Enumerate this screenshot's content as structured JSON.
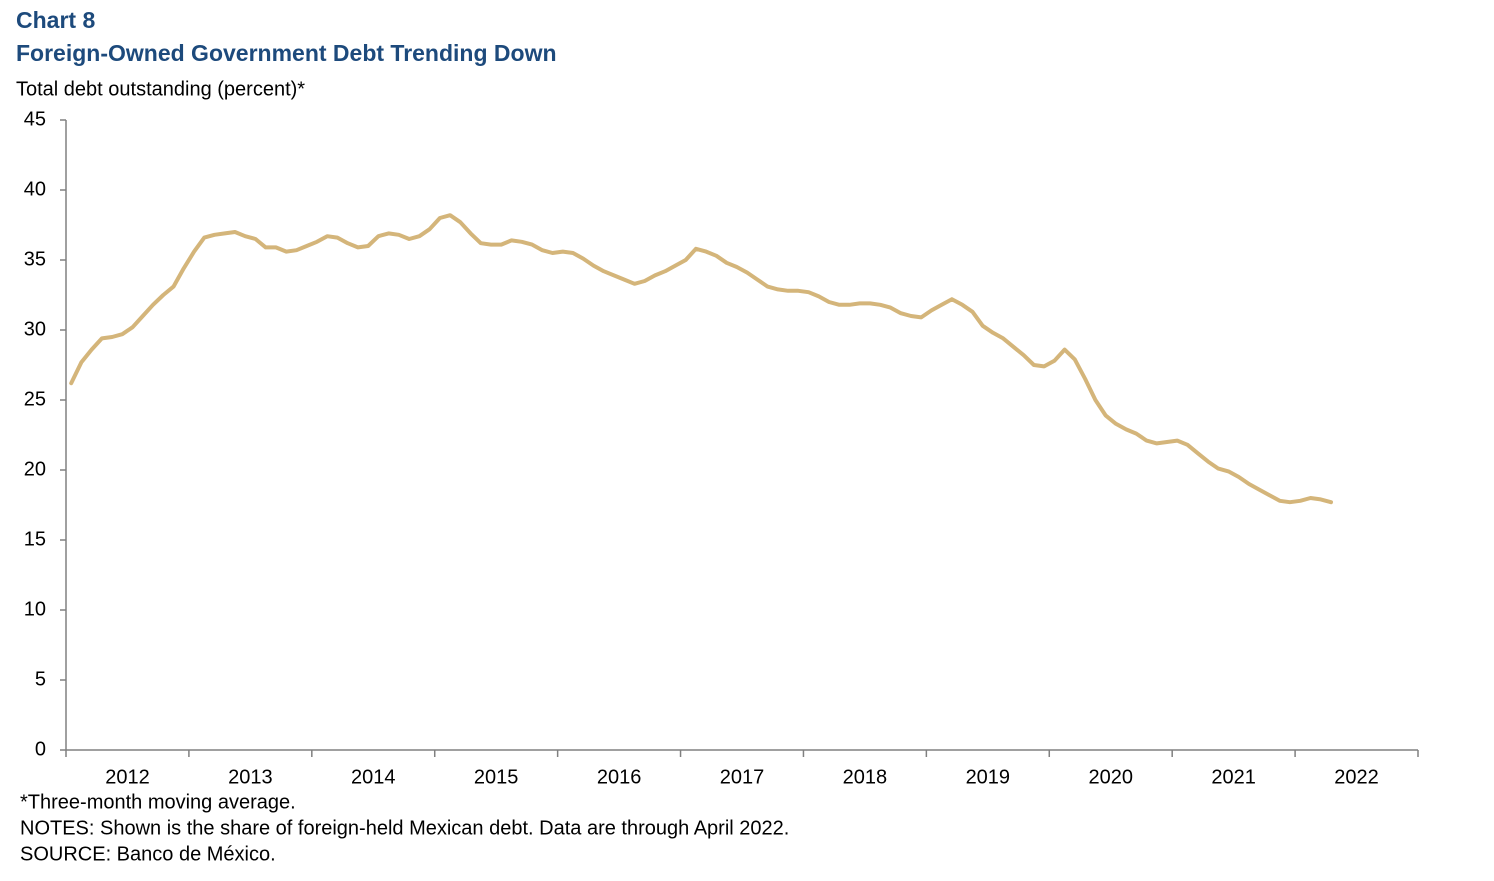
{
  "chart_data": {
    "type": "line",
    "title": "Chart 8",
    "subtitle": "Foreign-Owned Government Debt Trending Down",
    "y_label": "Total debt outstanding (percent)*",
    "notes": [
      "*Three-month moving average.",
      "NOTES: Shown is the share of foreign-held Mexican debt. Data are through April 2022.",
      "SOURCE: Banco de México."
    ],
    "categories": [
      "2012",
      "2013",
      "2014",
      "2015",
      "2016",
      "2017",
      "2018",
      "2019",
      "2020",
      "2021",
      "2022"
    ],
    "xlim": [
      2012,
      2023
    ],
    "ylim": [
      0,
      45
    ],
    "yticks": [
      0,
      5,
      10,
      15,
      20,
      25,
      30,
      35,
      40,
      45
    ],
    "x": [
      2012.042,
      2012.125,
      2012.208,
      2012.292,
      2012.375,
      2012.458,
      2012.542,
      2012.625,
      2012.708,
      2012.792,
      2012.875,
      2012.958,
      2013.042,
      2013.125,
      2013.208,
      2013.292,
      2013.375,
      2013.458,
      2013.542,
      2013.625,
      2013.708,
      2013.792,
      2013.875,
      2013.958,
      2014.042,
      2014.125,
      2014.208,
      2014.292,
      2014.375,
      2014.458,
      2014.542,
      2014.625,
      2014.708,
      2014.792,
      2014.875,
      2014.958,
      2015.042,
      2015.125,
      2015.208,
      2015.292,
      2015.375,
      2015.458,
      2015.542,
      2015.625,
      2015.708,
      2015.792,
      2015.875,
      2015.958,
      2016.042,
      2016.125,
      2016.208,
      2016.292,
      2016.375,
      2016.458,
      2016.542,
      2016.625,
      2016.708,
      2016.792,
      2016.875,
      2016.958,
      2017.042,
      2017.125,
      2017.208,
      2017.292,
      2017.375,
      2017.458,
      2017.542,
      2017.625,
      2017.708,
      2017.792,
      2017.875,
      2017.958,
      2018.042,
      2018.125,
      2018.208,
      2018.292,
      2018.375,
      2018.458,
      2018.542,
      2018.625,
      2018.708,
      2018.792,
      2018.875,
      2018.958,
      2019.042,
      2019.125,
      2019.208,
      2019.292,
      2019.375,
      2019.458,
      2019.542,
      2019.625,
      2019.708,
      2019.792,
      2019.875,
      2019.958,
      2020.042,
      2020.125,
      2020.208,
      2020.292,
      2020.375,
      2020.458,
      2020.542,
      2020.625,
      2020.708,
      2020.792,
      2020.875,
      2020.958,
      2021.042,
      2021.125,
      2021.208,
      2021.292,
      2021.375,
      2021.458,
      2021.542,
      2021.625,
      2021.708,
      2021.792,
      2021.875,
      2021.958,
      2022.042,
      2022.125,
      2022.208,
      2022.292
    ],
    "series": [
      {
        "color": "#d4b57a",
        "values": [
          26.2,
          27.7,
          28.6,
          29.4,
          29.5,
          29.7,
          30.2,
          31.0,
          31.8,
          32.5,
          33.1,
          34.4,
          35.6,
          36.6,
          36.8,
          36.9,
          37.0,
          36.7,
          36.5,
          35.9,
          35.9,
          35.6,
          35.7,
          36.0,
          36.3,
          36.7,
          36.6,
          36.2,
          35.9,
          36.0,
          36.7,
          36.9,
          36.8,
          36.5,
          36.7,
          37.2,
          38.0,
          38.2,
          37.7,
          36.9,
          36.2,
          36.1,
          36.1,
          36.4,
          36.3,
          36.1,
          35.7,
          35.5,
          35.6,
          35.5,
          35.1,
          34.6,
          34.2,
          33.9,
          33.6,
          33.3,
          33.5,
          33.9,
          34.2,
          34.6,
          35.0,
          35.8,
          35.6,
          35.3,
          34.8,
          34.5,
          34.1,
          33.6,
          33.1,
          32.9,
          32.8,
          32.8,
          32.7,
          32.4,
          32.0,
          31.8,
          31.8,
          31.9,
          31.9,
          31.8,
          31.6,
          31.2,
          31.0,
          30.9,
          31.4,
          31.8,
          32.2,
          31.8,
          31.3,
          30.3,
          29.8,
          29.4,
          28.8,
          28.2,
          27.5,
          27.4,
          27.8,
          28.6,
          27.9,
          26.5,
          25.0,
          23.9,
          23.3,
          22.9,
          22.6,
          22.1,
          21.9,
          22.0,
          22.1,
          21.8,
          21.2,
          20.6,
          20.1,
          19.9,
          19.5,
          19.0,
          18.6,
          18.2,
          17.8,
          17.7,
          17.8,
          18.0,
          17.9,
          17.7
        ]
      }
    ]
  }
}
